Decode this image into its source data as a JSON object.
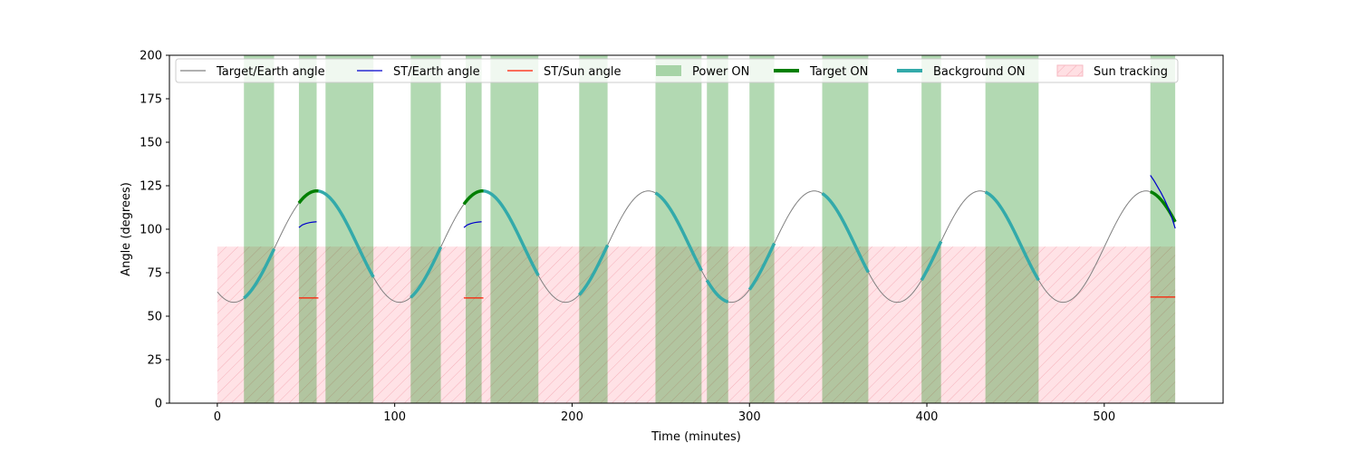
{
  "chart_data": {
    "type": "line",
    "title": "",
    "xlabel": "Time (minutes)",
    "ylabel": "Angle (degrees)",
    "xlim": [
      -27,
      567
    ],
    "ylim": [
      0,
      200
    ],
    "xticks": [
      0,
      100,
      200,
      300,
      400,
      500
    ],
    "yticks": [
      0,
      25,
      50,
      75,
      100,
      125,
      150,
      175,
      200
    ],
    "grid": false,
    "legend_position": "top",
    "target_earth_angle": {
      "t_start": 0,
      "t_end": 540,
      "mean": 90,
      "amplitude": 32,
      "period": 93.5,
      "peak_time": 56
    },
    "st_earth_angle": [
      {
        "x": [
          46,
          48,
          50,
          52,
          54,
          56
        ],
        "y": [
          101,
          102.5,
          103.3,
          103.8,
          104.1,
          104.3
        ]
      },
      {
        "x": [
          139,
          141,
          143,
          145,
          147,
          149
        ],
        "y": [
          101,
          102.5,
          103.3,
          103.8,
          104.1,
          104.3
        ]
      },
      {
        "x": [
          526,
          528,
          530,
          532,
          534,
          536,
          538,
          540
        ],
        "y": [
          131,
          128,
          124.5,
          121,
          117,
          112.5,
          107,
          100.5
        ]
      }
    ],
    "st_sun_angle": [
      {
        "x": [
          46,
          57
        ],
        "y": [
          60.5,
          60.5
        ]
      },
      {
        "x": [
          139,
          150
        ],
        "y": [
          60.5,
          60.5
        ]
      },
      {
        "x": [
          526,
          540
        ],
        "y": [
          61,
          61
        ]
      }
    ],
    "power_on": [
      [
        15,
        32
      ],
      [
        46,
        56
      ],
      [
        61,
        88
      ],
      [
        109,
        126
      ],
      [
        140,
        149
      ],
      [
        154,
        181
      ],
      [
        204,
        220
      ],
      [
        247,
        273
      ],
      [
        276,
        288
      ],
      [
        300,
        314
      ],
      [
        341,
        367
      ],
      [
        397,
        408
      ],
      [
        433,
        463
      ],
      [
        526,
        540
      ]
    ],
    "target_on": [
      [
        46,
        57
      ],
      [
        139,
        150
      ],
      [
        526,
        540
      ]
    ],
    "background_on": [
      [
        15,
        32
      ],
      [
        57,
        88
      ],
      [
        109,
        126
      ],
      [
        150,
        181
      ],
      [
        204,
        220
      ],
      [
        247,
        273
      ],
      [
        276,
        288
      ],
      [
        300,
        314
      ],
      [
        341,
        367
      ],
      [
        397,
        408
      ],
      [
        433,
        463
      ]
    ],
    "sun_tracking": [
      [
        0,
        526
      ],
      [
        526,
        540
      ]
    ],
    "sun_tracking_level": 90,
    "series": [
      {
        "name": "Target/Earth angle",
        "color": "#808080",
        "style": "line-thin"
      },
      {
        "name": "ST/Earth angle",
        "color": "#0000cc",
        "style": "line-thin"
      },
      {
        "name": "ST/Sun angle",
        "color": "#ff1a00",
        "style": "line-thin"
      },
      {
        "name": "Power ON",
        "color": "#b3d9b3",
        "style": "patch"
      },
      {
        "name": "Target ON",
        "color": "#007f00",
        "style": "line-thick"
      },
      {
        "name": "Background ON",
        "color": "#33aaaa",
        "style": "line-thick"
      },
      {
        "name": "Sun tracking",
        "color": "#ffdfe3",
        "style": "hatch"
      }
    ]
  }
}
